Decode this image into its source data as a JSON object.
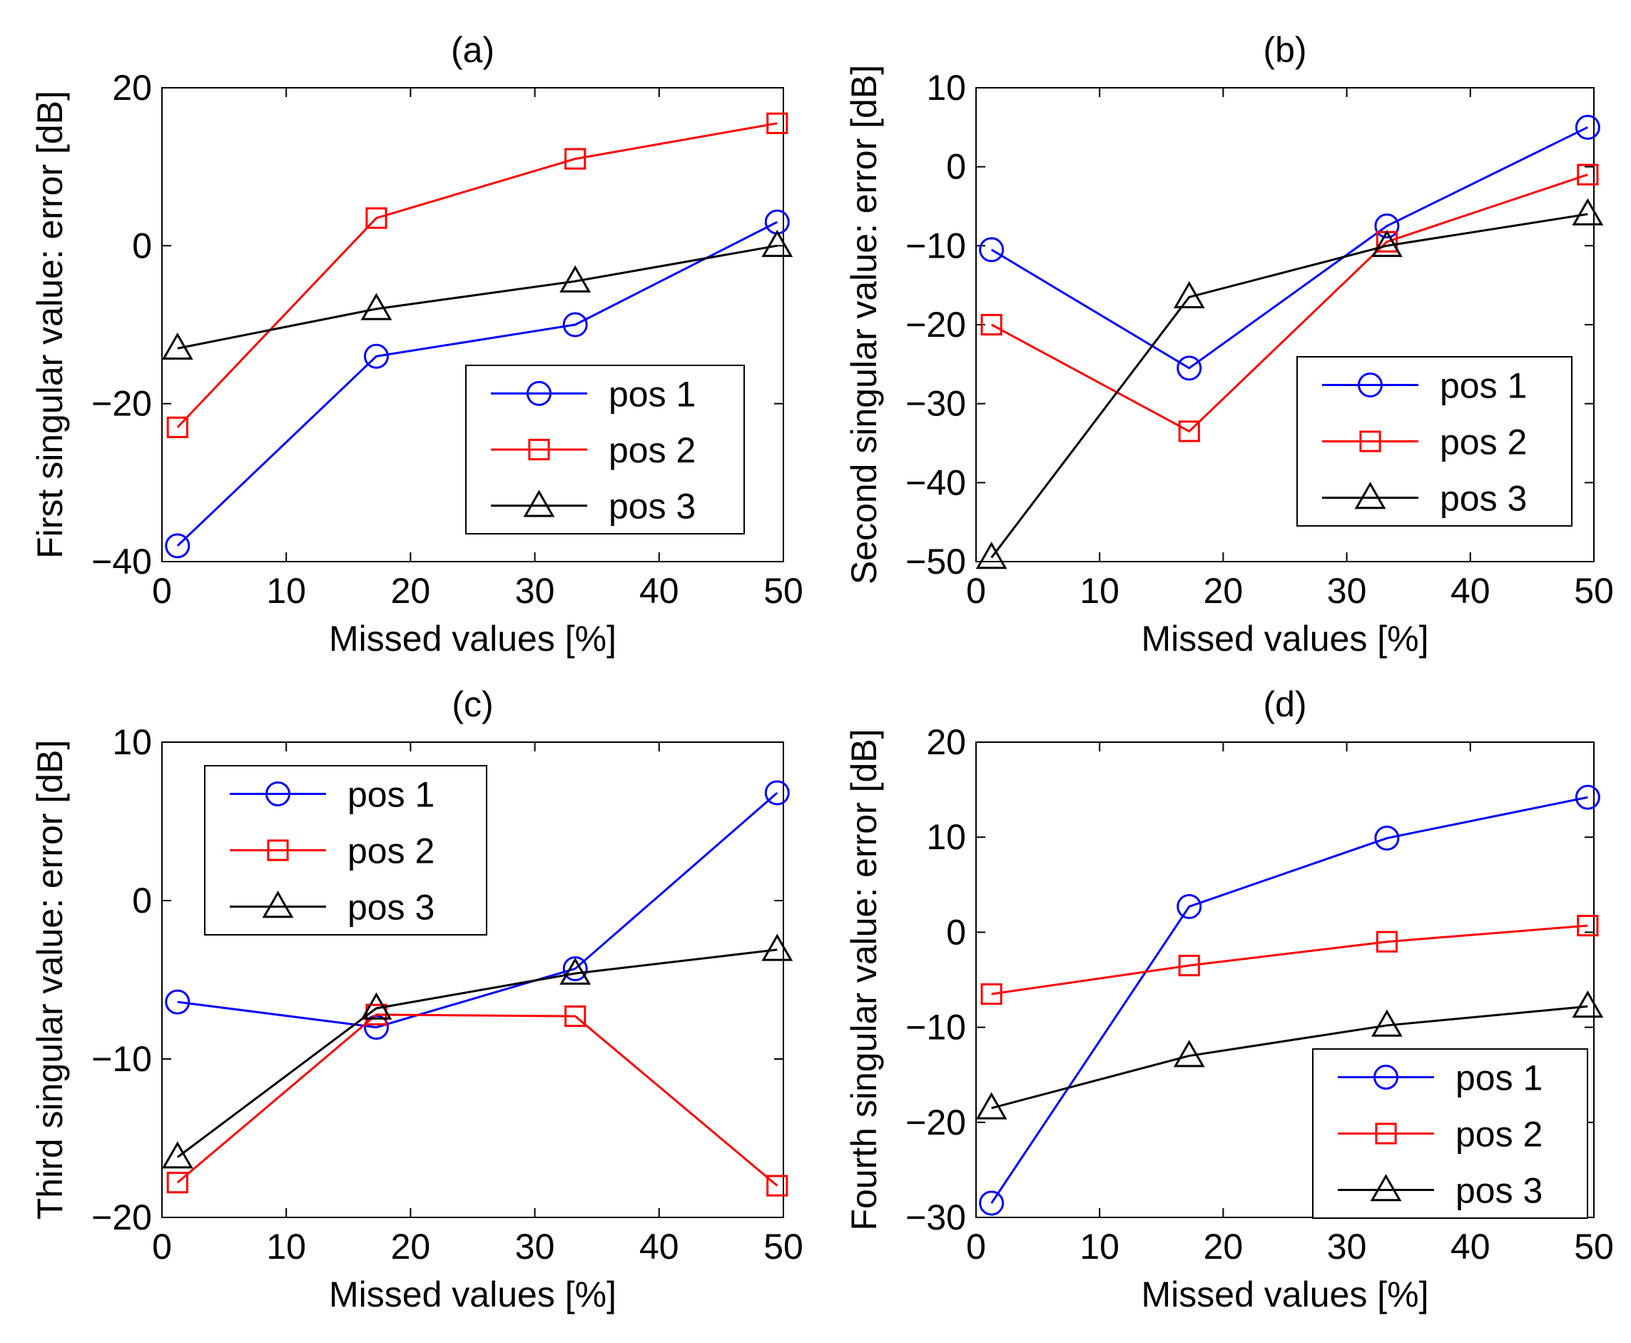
{
  "chart_data": [
    {
      "type": "line",
      "panel": "a",
      "title": "(a)",
      "xlabel": "Missed values [%]",
      "ylabel": "First singular value: error [dB]",
      "xlim": [
        0,
        50
      ],
      "ylim": [
        -40,
        20
      ],
      "xticks": [
        0,
        10,
        20,
        30,
        40,
        50
      ],
      "yticks": [
        -40,
        -20,
        0,
        20
      ],
      "legend_position": "lower-right",
      "x": [
        1.25,
        17.25,
        33.25,
        49.5
      ],
      "series": [
        {
          "name": "pos 1",
          "color": "#0000ff",
          "marker": "circle",
          "values": [
            -38,
            -14,
            -10,
            3
          ]
        },
        {
          "name": "pos 2",
          "color": "#ff0000",
          "marker": "square",
          "values": [
            -23,
            3.5,
            11,
            15.5
          ]
        },
        {
          "name": "pos 3",
          "color": "#000000",
          "marker": "triangle",
          "values": [
            -13,
            -8,
            -4.5,
            0
          ]
        }
      ]
    },
    {
      "type": "line",
      "panel": "b",
      "title": "(b)",
      "xlabel": "Missed values [%]",
      "ylabel": "Second singular value: error [dB]",
      "xlim": [
        0,
        50
      ],
      "ylim": [
        -50,
        10
      ],
      "xticks": [
        0,
        10,
        20,
        30,
        40,
        50
      ],
      "yticks": [
        -50,
        -40,
        -30,
        -20,
        -10,
        0,
        10
      ],
      "legend_position": "lower-right",
      "x": [
        1.25,
        17.25,
        33.25,
        49.5
      ],
      "series": [
        {
          "name": "pos 1",
          "color": "#0000ff",
          "marker": "circle",
          "values": [
            -10.5,
            -25.5,
            -7.5,
            5
          ]
        },
        {
          "name": "pos 2",
          "color": "#ff0000",
          "marker": "square",
          "values": [
            -20,
            -33.5,
            -9.5,
            -1
          ]
        },
        {
          "name": "pos 3",
          "color": "#000000",
          "marker": "triangle",
          "values": [
            -49.5,
            -16.5,
            -10,
            -6
          ]
        }
      ]
    },
    {
      "type": "line",
      "panel": "c",
      "title": "(c)",
      "xlabel": "Missed values [%]",
      "ylabel": "Third singular value: error [dB]",
      "xlim": [
        0,
        50
      ],
      "ylim": [
        -20,
        10
      ],
      "xticks": [
        0,
        10,
        20,
        30,
        40,
        50
      ],
      "yticks": [
        -20,
        -10,
        0,
        10
      ],
      "legend_position": "upper-left",
      "x": [
        1.25,
        17.25,
        33.25,
        49.5
      ],
      "series": [
        {
          "name": "pos 1",
          "color": "#0000ff",
          "marker": "circle",
          "values": [
            -6.4,
            -8,
            -4.3,
            6.8
          ]
        },
        {
          "name": "pos 2",
          "color": "#ff0000",
          "marker": "square",
          "values": [
            -17.8,
            -7.2,
            -7.3,
            -18
          ]
        },
        {
          "name": "pos 3",
          "color": "#000000",
          "marker": "triangle",
          "values": [
            -16.2,
            -6.8,
            -4.6,
            -3.1
          ]
        }
      ]
    },
    {
      "type": "line",
      "panel": "d",
      "title": "(d)",
      "xlabel": "Missed values [%]",
      "ylabel": "Fourth singular value: error [dB]",
      "xlim": [
        0,
        50
      ],
      "ylim": [
        -30,
        20
      ],
      "xticks": [
        0,
        10,
        20,
        30,
        40,
        50
      ],
      "yticks": [
        -30,
        -20,
        -10,
        0,
        10,
        20
      ],
      "legend_position": "lower-right",
      "x": [
        1.25,
        17.25,
        33.25,
        49.5
      ],
      "series": [
        {
          "name": "pos 1",
          "color": "#0000ff",
          "marker": "circle",
          "values": [
            -28.5,
            2.7,
            9.9,
            14.2
          ]
        },
        {
          "name": "pos 2",
          "color": "#ff0000",
          "marker": "square",
          "values": [
            -6.5,
            -3.5,
            -1,
            0.7
          ]
        },
        {
          "name": "pos 3",
          "color": "#000000",
          "marker": "triangle",
          "values": [
            -18.5,
            -13,
            -9.8,
            -7.8
          ]
        }
      ]
    }
  ]
}
